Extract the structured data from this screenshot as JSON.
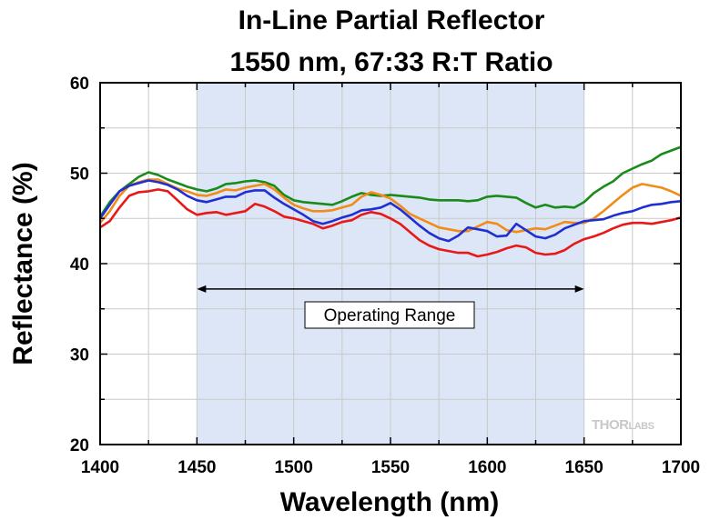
{
  "chart_data": {
    "type": "line",
    "title": [
      "In-Line Partial Reflector",
      "1550 nm, 67:33 R:T Ratio"
    ],
    "xlabel": "Wavelength (nm)",
    "ylabel": "Reflectance (%)",
    "xlim": [
      1400,
      1700
    ],
    "ylim": [
      20,
      60
    ],
    "xticks": [
      1400,
      1450,
      1500,
      1550,
      1600,
      1650,
      1700
    ],
    "yticks": [
      20,
      30,
      40,
      50,
      60
    ],
    "grid": true,
    "shaded_region": {
      "x": [
        1450,
        1650
      ],
      "color": "#dce6f6"
    },
    "annotation": {
      "text": "Operating Range",
      "arrow_x": [
        1450,
        1650
      ],
      "arrow_y": 37.2
    },
    "watermark": {
      "thor": "THOR",
      "labs": "LABS"
    },
    "series": [
      {
        "color": "#1a8a1a",
        "x": [
          1400,
          1405,
          1410,
          1415,
          1420,
          1425,
          1430,
          1435,
          1440,
          1445,
          1450,
          1455,
          1460,
          1465,
          1470,
          1475,
          1480,
          1485,
          1490,
          1495,
          1500,
          1505,
          1510,
          1515,
          1520,
          1525,
          1530,
          1535,
          1540,
          1545,
          1550,
          1555,
          1560,
          1565,
          1570,
          1575,
          1580,
          1585,
          1590,
          1595,
          1600,
          1605,
          1610,
          1615,
          1620,
          1625,
          1630,
          1635,
          1640,
          1645,
          1650,
          1655,
          1660,
          1665,
          1670,
          1675,
          1680,
          1685,
          1690,
          1695,
          1700
        ],
        "values": [
          45.2,
          46.8,
          48.0,
          48.8,
          49.6,
          50.1,
          49.8,
          49.3,
          48.9,
          48.5,
          48.2,
          48.0,
          48.3,
          48.8,
          48.9,
          49.1,
          49.2,
          49.0,
          48.6,
          47.6,
          47.0,
          46.8,
          46.7,
          46.6,
          46.5,
          46.9,
          47.4,
          47.8,
          47.6,
          47.5,
          47.6,
          47.5,
          47.4,
          47.3,
          47.1,
          47.0,
          47.0,
          47.0,
          46.9,
          47.0,
          47.4,
          47.5,
          47.4,
          47.3,
          46.7,
          46.2,
          46.5,
          46.2,
          46.3,
          46.2,
          46.8,
          47.8,
          48.5,
          49.1,
          50.0,
          50.5,
          51.0,
          51.4,
          52.1,
          52.5,
          52.9
        ]
      },
      {
        "color": "#f28c18",
        "x": [
          1400,
          1405,
          1410,
          1415,
          1420,
          1425,
          1430,
          1435,
          1440,
          1445,
          1450,
          1455,
          1460,
          1465,
          1470,
          1475,
          1480,
          1485,
          1490,
          1495,
          1500,
          1505,
          1510,
          1515,
          1520,
          1525,
          1530,
          1535,
          1540,
          1545,
          1550,
          1555,
          1560,
          1565,
          1570,
          1575,
          1580,
          1585,
          1590,
          1595,
          1600,
          1605,
          1610,
          1615,
          1620,
          1625,
          1630,
          1635,
          1640,
          1645,
          1650,
          1655,
          1660,
          1665,
          1670,
          1675,
          1680,
          1685,
          1690,
          1695,
          1700
        ],
        "values": [
          44.5,
          45.8,
          47.5,
          48.6,
          49.0,
          49.3,
          49.3,
          48.8,
          48.3,
          48.0,
          47.6,
          47.5,
          47.8,
          48.2,
          48.1,
          48.4,
          48.6,
          48.8,
          48.2,
          47.3,
          46.5,
          46.1,
          45.8,
          45.8,
          45.9,
          46.2,
          46.5,
          47.4,
          47.9,
          47.6,
          47.2,
          46.4,
          45.5,
          45.0,
          44.5,
          44.0,
          43.8,
          43.6,
          43.6,
          44.1,
          44.6,
          44.4,
          43.7,
          43.5,
          43.7,
          43.9,
          43.8,
          44.2,
          44.6,
          44.5,
          44.5,
          45.0,
          45.8,
          46.7,
          47.6,
          48.4,
          48.8,
          48.6,
          48.4,
          48.0,
          47.5
        ]
      },
      {
        "color": "#1f2fd1",
        "x": [
          1400,
          1405,
          1410,
          1415,
          1420,
          1425,
          1430,
          1435,
          1440,
          1445,
          1450,
          1455,
          1460,
          1465,
          1470,
          1475,
          1480,
          1485,
          1490,
          1495,
          1500,
          1505,
          1510,
          1515,
          1520,
          1525,
          1530,
          1535,
          1540,
          1545,
          1550,
          1555,
          1560,
          1565,
          1570,
          1575,
          1580,
          1585,
          1590,
          1595,
          1600,
          1605,
          1610,
          1615,
          1620,
          1625,
          1630,
          1635,
          1640,
          1645,
          1650,
          1655,
          1660,
          1665,
          1670,
          1675,
          1680,
          1685,
          1690,
          1695,
          1700
        ],
        "values": [
          45.0,
          46.5,
          48.0,
          48.6,
          48.9,
          49.2,
          49.0,
          48.7,
          48.2,
          47.5,
          47.0,
          46.8,
          47.1,
          47.4,
          47.4,
          47.9,
          48.1,
          48.1,
          47.3,
          46.6,
          46.0,
          45.4,
          44.7,
          44.4,
          44.7,
          45.1,
          45.4,
          45.9,
          46.0,
          46.2,
          46.7,
          46.0,
          45.1,
          44.2,
          43.4,
          42.8,
          42.5,
          43.1,
          44.0,
          43.8,
          43.6,
          43.0,
          43.1,
          44.4,
          43.7,
          43.0,
          42.8,
          43.2,
          43.9,
          44.3,
          44.7,
          44.8,
          44.9,
          45.3,
          45.6,
          45.8,
          46.2,
          46.5,
          46.6,
          46.8,
          46.9
        ]
      },
      {
        "color": "#e81818",
        "x": [
          1400,
          1405,
          1410,
          1415,
          1420,
          1425,
          1430,
          1435,
          1440,
          1445,
          1450,
          1455,
          1460,
          1465,
          1470,
          1475,
          1480,
          1485,
          1490,
          1495,
          1500,
          1505,
          1510,
          1515,
          1520,
          1525,
          1530,
          1535,
          1540,
          1545,
          1550,
          1555,
          1560,
          1565,
          1570,
          1575,
          1580,
          1585,
          1590,
          1595,
          1600,
          1605,
          1610,
          1615,
          1620,
          1625,
          1630,
          1635,
          1640,
          1645,
          1650,
          1655,
          1660,
          1665,
          1670,
          1675,
          1680,
          1685,
          1690,
          1695,
          1700
        ],
        "values": [
          44.0,
          44.7,
          46.2,
          47.5,
          47.9,
          48.0,
          48.2,
          48.0,
          47.0,
          46.0,
          45.4,
          45.6,
          45.7,
          45.4,
          45.6,
          45.8,
          46.6,
          46.3,
          45.8,
          45.2,
          45.0,
          44.7,
          44.4,
          43.9,
          44.2,
          44.6,
          44.8,
          45.4,
          45.7,
          45.5,
          45.0,
          44.4,
          43.5,
          42.6,
          42.0,
          41.6,
          41.4,
          41.2,
          41.2,
          40.8,
          41.0,
          41.3,
          41.7,
          42.0,
          41.8,
          41.2,
          41.0,
          41.1,
          41.5,
          42.2,
          42.7,
          43.0,
          43.4,
          43.9,
          44.3,
          44.5,
          44.5,
          44.4,
          44.6,
          44.8,
          45.1
        ]
      }
    ]
  }
}
